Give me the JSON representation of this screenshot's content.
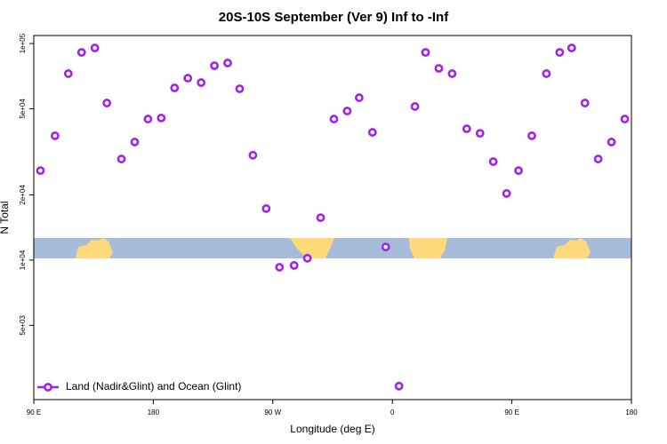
{
  "chart_data": {
    "type": "scatter",
    "title": "20S-10S September (Ver 9)   Inf to -Inf",
    "x_label": "Longitude (deg E)",
    "y_label": "N Total",
    "x": [
      95,
      106,
      116,
      126,
      136,
      145,
      156,
      166,
      176,
      186,
      196,
      206,
      216,
      226,
      236,
      245,
      255,
      265,
      275,
      286,
      296,
      306,
      316,
      326,
      335,
      345,
      355,
      365,
      377,
      385,
      395,
      405,
      416,
      426,
      436,
      446,
      455,
      465,
      476,
      486,
      495,
      505,
      515,
      525,
      535
    ],
    "series": [
      {
        "name": "Land (Nadir&Glint) and Ocean (Glint)",
        "color": "#a020f0",
        "values": [
          25900,
          37500,
          72600,
          91000,
          95400,
          53100,
          29300,
          35100,
          44800,
          45300,
          62400,
          69200,
          66000,
          79000,
          81300,
          61800,
          30500,
          17300,
          9270,
          9450,
          10200,
          15700,
          44800,
          48800,
          56200,
          38900,
          11500,
          2620,
          51200,
          91000,
          76800,
          72600,
          40400,
          38500,
          28500,
          20300,
          25900,
          37500,
          72600,
          91000,
          95400,
          53100,
          29300,
          35100,
          44800
        ]
      }
    ],
    "xlim": [
      90,
      540
    ],
    "xticks": [
      {
        "value": 90,
        "label": "90 E"
      },
      {
        "value": 180,
        "label": "180"
      },
      {
        "value": 270,
        "label": "90 W"
      },
      {
        "value": 360,
        "label": "0"
      },
      {
        "value": 450,
        "label": "90 E"
      },
      {
        "value": 540,
        "label": "180"
      }
    ],
    "ylim": [
      2270,
      108900
    ],
    "ylog": true,
    "yticks": [
      {
        "value": 100000,
        "label": "1e+05"
      },
      {
        "value": 50000,
        "label": "5e+04"
      },
      {
        "value": 20000,
        "label": "2e+04"
      },
      {
        "value": 10000,
        "label": "1e+04"
      },
      {
        "value": 5000,
        "label": "5e+03"
      }
    ],
    "legend": "bottom-left"
  }
}
